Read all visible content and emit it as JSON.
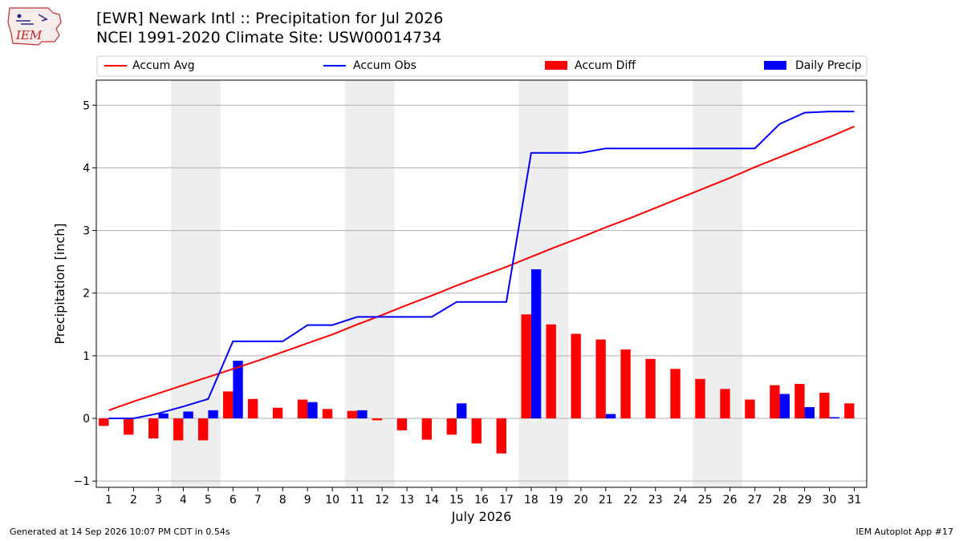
{
  "header": {
    "title_line1": "[EWR] Newark Intl :: Precipitation for Jul 2026",
    "title_line2": "NCEI 1991-2020 Climate Site: USW00014734",
    "logo_text": "IEM"
  },
  "footer": {
    "left": "Generated at 14 Sep 2026 10:07 PM CDT in 0.54s",
    "right": "IEM Autoplot App #17"
  },
  "colors": {
    "accum_avg": "#ff0000",
    "accum_obs": "#0000ff",
    "accum_diff": "#ff0000",
    "daily_precip": "#0000ff",
    "weekend_shade": "#eeeeee",
    "grid": "#b0b0b0"
  },
  "chart_data": {
    "type": "bar",
    "title": "[EWR] Newark Intl :: Precipitation for Jul 2026",
    "xlabel": "July 2026",
    "ylabel": "Precipitation [inch]",
    "ylim": [
      -1.1,
      5.4
    ],
    "yticks": [
      -1,
      0,
      1,
      2,
      3,
      4,
      5
    ],
    "grid": true,
    "legend_position": "top",
    "legend": [
      "Accum Avg",
      "Accum Obs",
      "Accum Diff",
      "Daily Precip"
    ],
    "shaded_days": [
      [
        4,
        5
      ],
      [
        11,
        12
      ],
      [
        18,
        19
      ],
      [
        25,
        26
      ]
    ],
    "x": [
      1,
      2,
      3,
      4,
      5,
      6,
      7,
      8,
      9,
      10,
      11,
      12,
      13,
      14,
      15,
      16,
      17,
      18,
      19,
      20,
      21,
      22,
      23,
      24,
      25,
      26,
      27,
      28,
      29,
      30,
      31
    ],
    "series": [
      {
        "name": "Accum Avg",
        "kind": "line",
        "values": [
          0.13,
          0.27,
          0.4,
          0.53,
          0.66,
          0.79,
          0.92,
          1.06,
          1.2,
          1.34,
          1.5,
          1.65,
          1.81,
          1.96,
          2.12,
          2.27,
          2.42,
          2.58,
          2.74,
          2.89,
          3.05,
          3.2,
          3.36,
          3.52,
          3.68,
          3.84,
          4.01,
          4.17,
          4.33,
          4.49,
          4.66
        ]
      },
      {
        "name": "Accum Obs",
        "kind": "line",
        "values": [
          0.0,
          0.0,
          0.08,
          0.19,
          0.31,
          1.23,
          1.23,
          1.23,
          1.49,
          1.49,
          1.62,
          1.62,
          1.62,
          1.62,
          1.86,
          1.86,
          1.86,
          4.24,
          4.24,
          4.24,
          4.31,
          4.31,
          4.31,
          4.31,
          4.31,
          4.31,
          4.31,
          4.7,
          4.88,
          4.9,
          4.9
        ]
      },
      {
        "name": "Accum Diff",
        "kind": "bar",
        "values": [
          -0.12,
          -0.26,
          -0.32,
          -0.35,
          -0.35,
          0.43,
          0.31,
          0.17,
          0.3,
          0.15,
          0.12,
          -0.03,
          -0.19,
          -0.34,
          -0.26,
          -0.4,
          -0.56,
          1.66,
          1.5,
          1.35,
          1.26,
          1.1,
          0.95,
          0.79,
          0.63,
          0.47,
          0.3,
          0.53,
          0.55,
          0.41,
          0.24
        ]
      },
      {
        "name": "Daily Precip",
        "kind": "bar",
        "values": [
          0.0,
          0.0,
          0.08,
          0.11,
          0.13,
          0.92,
          0.0,
          0.0,
          0.26,
          0.0,
          0.13,
          0.0,
          0.0,
          0.0,
          0.24,
          0.0,
          0.0,
          2.38,
          0.0,
          0.0,
          0.07,
          0.0,
          0.0,
          0.0,
          0.0,
          0.0,
          0.0,
          0.39,
          0.18,
          0.02,
          0.0
        ]
      }
    ]
  }
}
